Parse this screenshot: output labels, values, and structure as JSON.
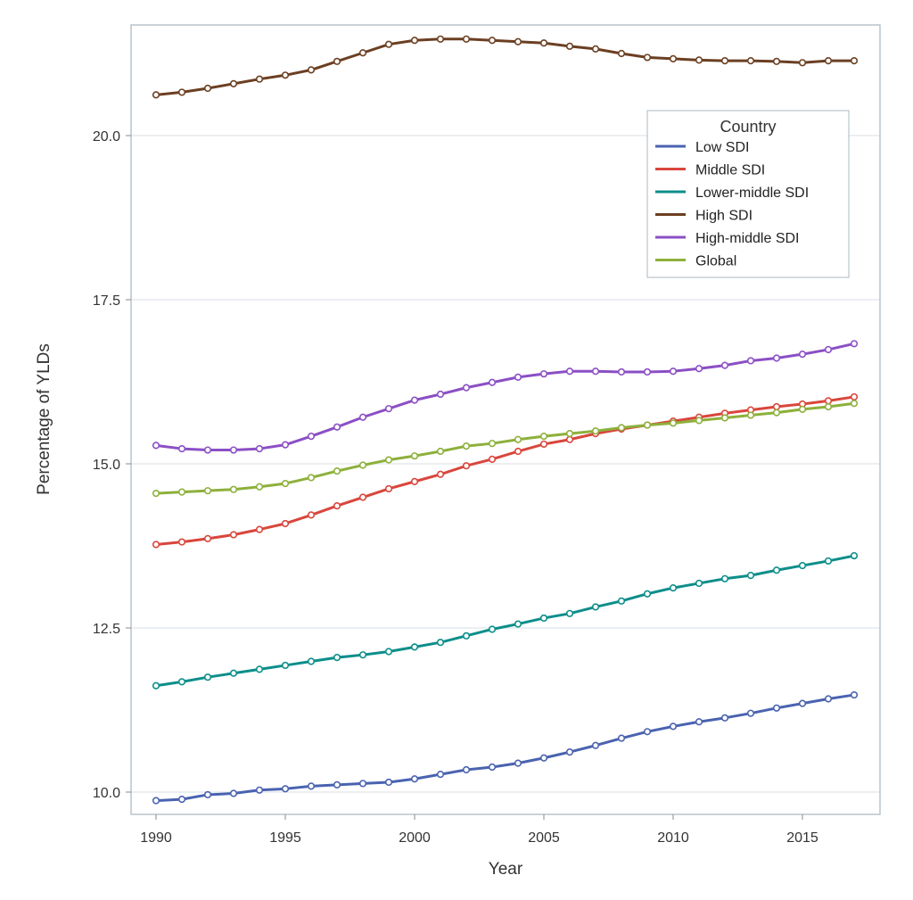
{
  "chart_data": {
    "type": "line",
    "title": "",
    "xlabel": "Year",
    "ylabel": "Percentage of YLDs",
    "xlim": [
      1990,
      2017
    ],
    "ylim": [
      9.8,
      21.6
    ],
    "x_ticks": [
      1990,
      1995,
      2000,
      2005,
      2010,
      2015
    ],
    "x_tick_labels": [
      "1990",
      "1995",
      "2000",
      "2005",
      "2010",
      "2015"
    ],
    "y_ticks": [
      10.0,
      12.5,
      15.0,
      17.5,
      20.0
    ],
    "y_tick_labels": [
      "10.0",
      "12.5",
      "15.0",
      "17.5",
      "20.0"
    ],
    "grid": "horizontal",
    "legend": {
      "title": "Country",
      "position": "top-right",
      "entries": [
        "Low SDI",
        "Middle SDI",
        "Lower-middle SDI",
        "High SDI",
        "High-middle SDI",
        "Global"
      ]
    },
    "x": [
      1990,
      1991,
      1992,
      1993,
      1994,
      1995,
      1996,
      1997,
      1998,
      1999,
      2000,
      2001,
      2002,
      2003,
      2004,
      2005,
      2006,
      2007,
      2008,
      2009,
      2010,
      2011,
      2012,
      2013,
      2014,
      2015,
      2016,
      2017
    ],
    "series": [
      {
        "name": "Low SDI",
        "color": "#4a63b0",
        "values": [
          9.87,
          9.89,
          9.96,
          9.98,
          10.03,
          10.05,
          10.09,
          10.11,
          10.13,
          10.15,
          10.2,
          10.27,
          10.34,
          10.38,
          10.44,
          10.52,
          10.61,
          10.71,
          10.82,
          10.92,
          11.0,
          11.07,
          11.13,
          11.2,
          11.28,
          11.35,
          11.42,
          11.48
        ]
      },
      {
        "name": "Middle SDI",
        "color": "#d9463c",
        "values": [
          13.77,
          13.81,
          13.86,
          13.92,
          14.0,
          14.09,
          14.22,
          14.36,
          14.49,
          14.62,
          14.73,
          14.84,
          14.97,
          15.07,
          15.19,
          15.3,
          15.37,
          15.46,
          15.53,
          15.59,
          15.65,
          15.71,
          15.77,
          15.82,
          15.87,
          15.91,
          15.96,
          16.02
        ]
      },
      {
        "name": "Lower-middle SDI",
        "color": "#0c8e8a",
        "values": [
          11.62,
          11.68,
          11.75,
          11.81,
          11.87,
          11.93,
          11.99,
          12.05,
          12.09,
          12.14,
          12.21,
          12.28,
          12.38,
          12.48,
          12.56,
          12.65,
          12.72,
          12.82,
          12.91,
          13.02,
          13.11,
          13.18,
          13.25,
          13.3,
          13.38,
          13.45,
          13.52,
          13.6
        ]
      },
      {
        "name": "High SDI",
        "color": "#6b3f22",
        "values": [
          20.62,
          20.66,
          20.72,
          20.79,
          20.86,
          20.92,
          21.0,
          21.13,
          21.26,
          21.39,
          21.45,
          21.47,
          21.47,
          21.45,
          21.43,
          21.41,
          21.36,
          21.32,
          21.25,
          21.19,
          21.17,
          21.15,
          21.14,
          21.14,
          21.13,
          21.11,
          21.14,
          21.14
        ]
      },
      {
        "name": "High-middle SDI",
        "color": "#8b4fc5",
        "values": [
          15.28,
          15.23,
          15.21,
          15.21,
          15.23,
          15.29,
          15.42,
          15.56,
          15.71,
          15.84,
          15.97,
          16.06,
          16.16,
          16.24,
          16.32,
          16.37,
          16.41,
          16.41,
          16.4,
          16.4,
          16.41,
          16.45,
          16.5,
          16.57,
          16.61,
          16.67,
          16.74,
          16.83
        ]
      },
      {
        "name": "Global",
        "color": "#8db03b",
        "values": [
          14.55,
          14.57,
          14.59,
          14.61,
          14.65,
          14.7,
          14.79,
          14.89,
          14.98,
          15.06,
          15.12,
          15.19,
          15.27,
          15.31,
          15.37,
          15.42,
          15.46,
          15.5,
          15.55,
          15.59,
          15.62,
          15.66,
          15.7,
          15.74,
          15.78,
          15.83,
          15.87,
          15.92
        ]
      }
    ]
  }
}
